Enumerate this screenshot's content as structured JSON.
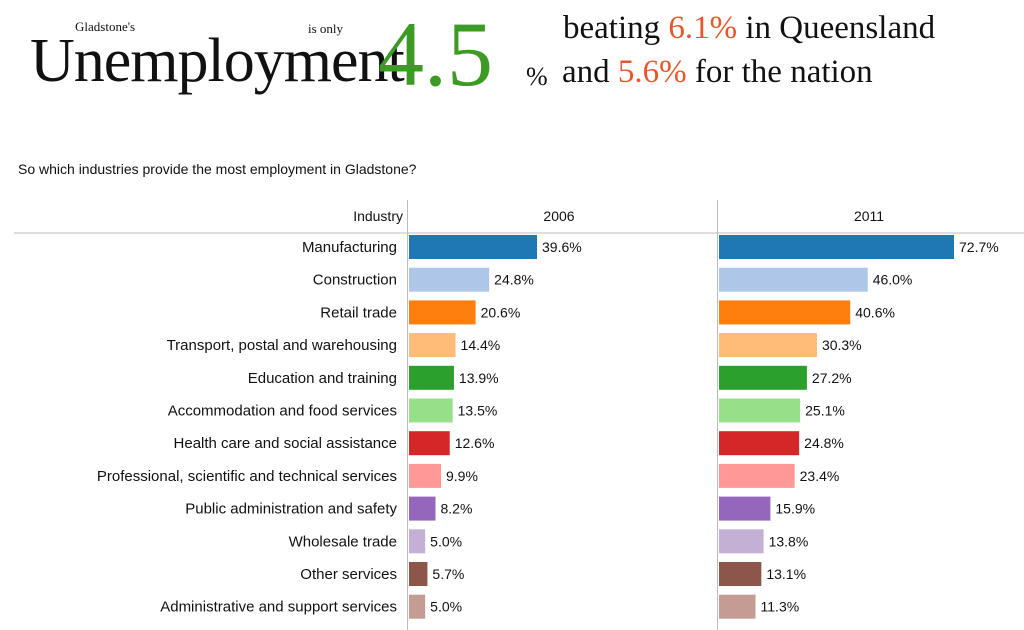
{
  "headline": {
    "place": "Gladstone's",
    "word": "Unemployment",
    "is_only": "is only",
    "rate": "4.5",
    "rate_unit": "%",
    "beating": "beating",
    "qld_rate": "6.1%",
    "in_qld": "in Queensland",
    "and": "and",
    "nation_rate": "5.6%",
    "for_nation": "for the nation",
    "accent_color": "#e8572c",
    "rate_color": "#3d9a24"
  },
  "question": "So which industries provide the most employment in Gladstone?",
  "chart_data": {
    "type": "bar",
    "orientation": "horizontal",
    "category_header": "Industry",
    "categories": [
      "Manufacturing",
      "Construction",
      "Retail trade",
      "Transport, postal and warehousing",
      "Education and training",
      "Accommodation and food services",
      "Health care and social assistance",
      "Professional, scientific and technical services",
      "Public administration and safety",
      "Wholesale trade",
      "Other services",
      "Administrative and support services"
    ],
    "colors": [
      "#1f77b4",
      "#aec7e8",
      "#ff7f0e",
      "#ffbb78",
      "#2ca02c",
      "#98df8a",
      "#d62728",
      "#ff9896",
      "#9467bd",
      "#c5b0d5",
      "#8c564b",
      "#c49c94"
    ],
    "series": [
      {
        "name": "2006",
        "values": [
          39.6,
          24.8,
          20.6,
          14.4,
          13.9,
          13.5,
          12.6,
          9.9,
          8.2,
          5.0,
          5.7,
          5.0
        ],
        "labels": [
          "39.6%",
          "24.8%",
          "20.6%",
          "14.4%",
          "13.9%",
          "13.5%",
          "12.6%",
          "9.9%",
          "8.2%",
          "5.0%",
          "5.7%",
          "5.0%"
        ]
      },
      {
        "name": "2011",
        "values": [
          72.7,
          46.0,
          40.6,
          30.3,
          27.2,
          25.1,
          24.8,
          23.4,
          15.9,
          13.8,
          13.1,
          11.3
        ],
        "labels": [
          "72.7%",
          "46.0%",
          "40.6%",
          "30.3%",
          "27.2%",
          "25.1%",
          "24.8%",
          "23.4%",
          "15.9%",
          "13.8%",
          "13.1%",
          "11.3%"
        ]
      }
    ],
    "xlim": [
      0,
      100
    ]
  }
}
